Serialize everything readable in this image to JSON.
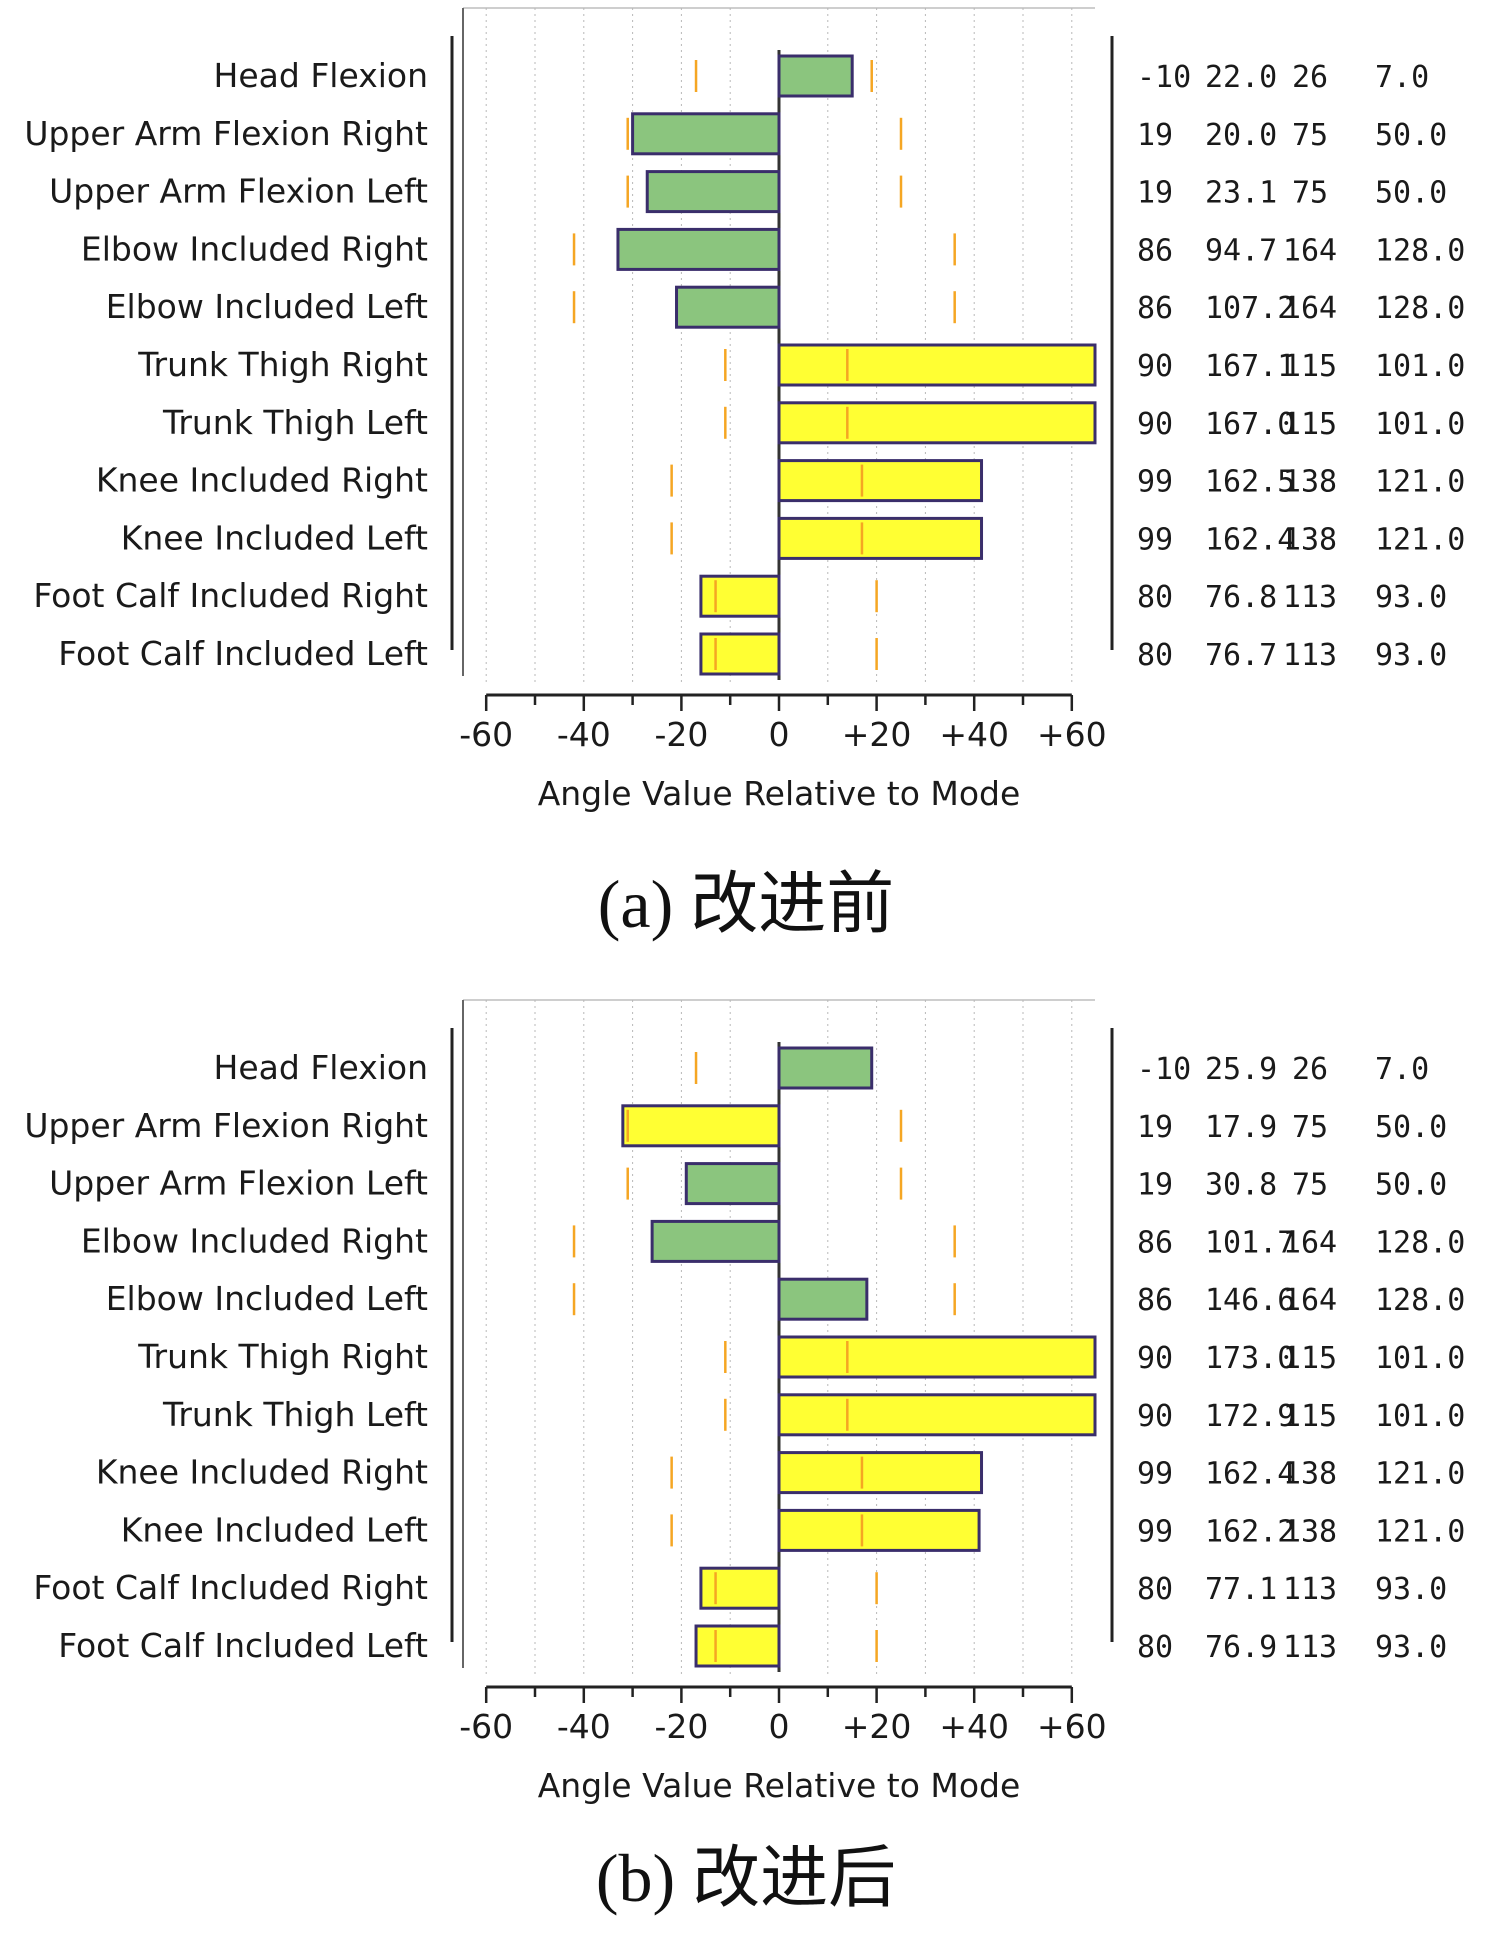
{
  "chart_data": [
    {
      "type": "bar",
      "orientation": "horizontal",
      "caption": "(a)  改进前",
      "xlabel": "Angle Value Relative to Mode",
      "xlim": [
        -65,
        65
      ],
      "xticks": [
        "-60",
        "-40",
        "-20",
        "0",
        "+20",
        "+40",
        "+60"
      ],
      "xtick_values": [
        -60,
        -40,
        -20,
        0,
        20,
        40,
        60
      ],
      "rows": [
        {
          "label": "Head Flexion",
          "value": 15,
          "color": "green",
          "min_marker": -17,
          "max_marker": 19,
          "mid_marker": null,
          "cols": [
            "-10",
            "22.0",
            "26",
            "7.0"
          ]
        },
        {
          "label": "Upper Arm Flexion Right",
          "value": -30,
          "color": "green",
          "min_marker": -31,
          "max_marker": 25,
          "mid_marker": null,
          "cols": [
            "19",
            "20.0",
            "75",
            "50.0"
          ]
        },
        {
          "label": "Upper Arm Flexion Left",
          "value": -27,
          "color": "green",
          "min_marker": -31,
          "max_marker": 25,
          "mid_marker": null,
          "cols": [
            "19",
            "23.1",
            "75",
            "50.0"
          ]
        },
        {
          "label": "Elbow Included Right",
          "value": -33,
          "color": "green",
          "min_marker": -42,
          "max_marker": 36,
          "mid_marker": null,
          "cols": [
            "86",
            "94.7",
            "164",
            "128.0"
          ]
        },
        {
          "label": "Elbow Included Left",
          "value": -21,
          "color": "green",
          "min_marker": -42,
          "max_marker": 36,
          "mid_marker": null,
          "cols": [
            "86",
            "107.2",
            "164",
            "128.0"
          ]
        },
        {
          "label": "Trunk Thigh Right",
          "value": 66,
          "color": "yellow",
          "min_marker": -11,
          "max_marker": null,
          "mid_marker": 14,
          "cols": [
            "90",
            "167.1",
            "115",
            "101.0"
          ]
        },
        {
          "label": "Trunk Thigh Left",
          "value": 66,
          "color": "yellow",
          "min_marker": -11,
          "max_marker": null,
          "mid_marker": 14,
          "cols": [
            "90",
            "167.0",
            "115",
            "101.0"
          ]
        },
        {
          "label": "Knee Included Right",
          "value": 41.5,
          "color": "yellow",
          "min_marker": -22,
          "max_marker": null,
          "mid_marker": 17,
          "cols": [
            "99",
            "162.5",
            "138",
            "121.0"
          ]
        },
        {
          "label": "Knee Included Left",
          "value": 41.5,
          "color": "yellow",
          "min_marker": -22,
          "max_marker": null,
          "mid_marker": 17,
          "cols": [
            "99",
            "162.4",
            "138",
            "121.0"
          ]
        },
        {
          "label": "Foot Calf Included Right",
          "value": -16,
          "color": "yellow",
          "min_marker": null,
          "max_marker": 20,
          "mid_marker": -13,
          "cols": [
            "80",
            "76.8",
            "113",
            "93.0"
          ]
        },
        {
          "label": "Foot Calf Included Left",
          "value": -16,
          "color": "yellow",
          "min_marker": null,
          "max_marker": 20,
          "mid_marker": -13,
          "cols": [
            "80",
            "76.7",
            "113",
            "93.0"
          ]
        }
      ]
    },
    {
      "type": "bar",
      "orientation": "horizontal",
      "caption": "(b)  改进后",
      "xlabel": "Angle Value Relative to Mode",
      "xlim": [
        -65,
        65
      ],
      "xticks": [
        "-60",
        "-40",
        "-20",
        "0",
        "+20",
        "+40",
        "+60"
      ],
      "xtick_values": [
        -60,
        -40,
        -20,
        0,
        20,
        40,
        60
      ],
      "rows": [
        {
          "label": "Head Flexion",
          "value": 19,
          "color": "green",
          "min_marker": -17,
          "max_marker": null,
          "mid_marker": null,
          "cols": [
            "-10",
            "25.9",
            "26",
            "7.0"
          ]
        },
        {
          "label": "Upper Arm Flexion Right",
          "value": -32,
          "color": "yellow",
          "min_marker": null,
          "max_marker": 25,
          "mid_marker": -31,
          "cols": [
            "19",
            "17.9",
            "75",
            "50.0"
          ]
        },
        {
          "label": "Upper Arm Flexion Left",
          "value": -19,
          "color": "green",
          "min_marker": -31,
          "max_marker": 25,
          "mid_marker": null,
          "cols": [
            "19",
            "30.8",
            "75",
            "50.0"
          ]
        },
        {
          "label": "Elbow Included Right",
          "value": -26,
          "color": "green",
          "min_marker": -42,
          "max_marker": 36,
          "mid_marker": null,
          "cols": [
            "86",
            "101.7",
            "164",
            "128.0"
          ]
        },
        {
          "label": "Elbow Included Left",
          "value": 18,
          "color": "green",
          "min_marker": -42,
          "max_marker": 36,
          "mid_marker": null,
          "cols": [
            "86",
            "146.6",
            "164",
            "128.0"
          ]
        },
        {
          "label": "Trunk Thigh Right",
          "value": 66,
          "color": "yellow",
          "min_marker": -11,
          "max_marker": null,
          "mid_marker": 14,
          "cols": [
            "90",
            "173.0",
            "115",
            "101.0"
          ]
        },
        {
          "label": "Trunk Thigh Left",
          "value": 66,
          "color": "yellow",
          "min_marker": -11,
          "max_marker": null,
          "mid_marker": 14,
          "cols": [
            "90",
            "172.9",
            "115",
            "101.0"
          ]
        },
        {
          "label": "Knee Included Right",
          "value": 41.5,
          "color": "yellow",
          "min_marker": -22,
          "max_marker": null,
          "mid_marker": 17,
          "cols": [
            "99",
            "162.4",
            "138",
            "121.0"
          ]
        },
        {
          "label": "Knee Included Left",
          "value": 41,
          "color": "yellow",
          "min_marker": -22,
          "max_marker": null,
          "mid_marker": 17,
          "cols": [
            "99",
            "162.2",
            "138",
            "121.0"
          ]
        },
        {
          "label": "Foot Calf Included Right",
          "value": -16,
          "color": "yellow",
          "min_marker": null,
          "max_marker": 20,
          "mid_marker": -13,
          "cols": [
            "80",
            "77.1",
            "113",
            "93.0"
          ]
        },
        {
          "label": "Foot Calf Included Left",
          "value": -17,
          "color": "yellow",
          "min_marker": null,
          "max_marker": 20,
          "mid_marker": -13,
          "cols": [
            "80",
            "76.9",
            "113",
            "93.0"
          ]
        }
      ]
    }
  ],
  "colors": {
    "green": "#8bc57e",
    "yellow": "#ffff33",
    "bar_stroke": "#3a2e6b",
    "marker": "#f5a623",
    "grid": "#b8b8b8",
    "axis": "#333333"
  }
}
